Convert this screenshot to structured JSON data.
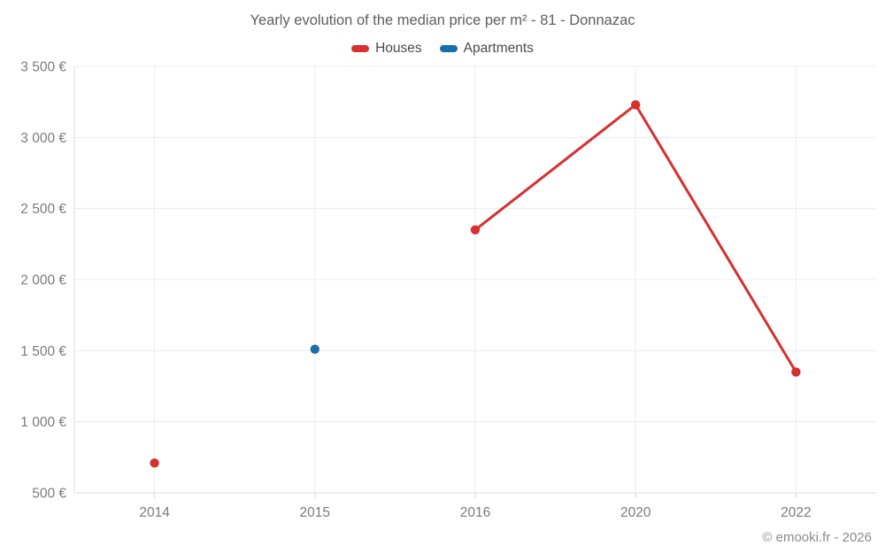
{
  "title": "Yearly evolution of the median price per m² - 81 - Donnazac",
  "legend": {
    "items": [
      {
        "label": "Houses",
        "color": "#d6302f"
      },
      {
        "label": "Apartments",
        "color": "#1a6fa8"
      }
    ]
  },
  "footer": {
    "credit": "© emooki.fr - 2026"
  },
  "chart_data": {
    "type": "line",
    "title": "Yearly evolution of the median price per m² - 81 - Donnazac",
    "categories": [
      "2014",
      "2015",
      "2016",
      "2020",
      "2022"
    ],
    "series": [
      {
        "name": "Houses",
        "color": "#d6302f",
        "values": [
          710,
          null,
          2350,
          3230,
          1350
        ]
      },
      {
        "name": "Apartments",
        "color": "#1a6fa8",
        "values": [
          null,
          1510,
          null,
          null,
          null
        ]
      }
    ],
    "ylim": [
      500,
      3500
    ],
    "ytick_step": 500,
    "ytick_suffix": " €",
    "grid": true,
    "legend_position": "top",
    "xlabel": "",
    "ylabel": ""
  }
}
